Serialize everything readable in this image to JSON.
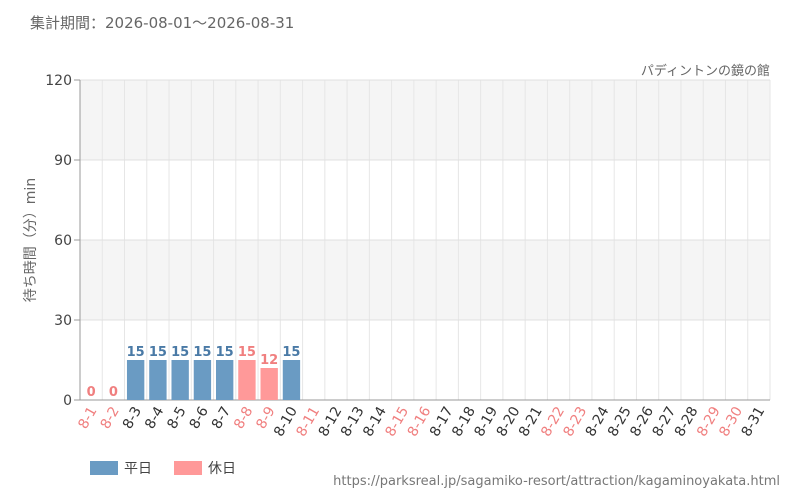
{
  "header": {
    "period_text": "集計期間：2026-08-01～2026-08-31",
    "attraction_name": "パディントンの鏡の館"
  },
  "chart_data": {
    "type": "bar",
    "ylabel": "待ち時間（分）min",
    "ylim": [
      0,
      120
    ],
    "yticks": [
      0,
      30,
      60,
      90,
      120
    ],
    "categories": [
      "8-1",
      "8-2",
      "8-3",
      "8-4",
      "8-5",
      "8-6",
      "8-7",
      "8-8",
      "8-9",
      "8-10",
      "8-11",
      "8-12",
      "8-13",
      "8-14",
      "8-15",
      "8-16",
      "8-17",
      "8-18",
      "8-19",
      "8-20",
      "8-21",
      "8-22",
      "8-23",
      "8-24",
      "8-25",
      "8-26",
      "8-27",
      "8-28",
      "8-29",
      "8-30",
      "8-31"
    ],
    "values": [
      0,
      0,
      15,
      15,
      15,
      15,
      15,
      15,
      12,
      15,
      null,
      null,
      null,
      null,
      null,
      null,
      null,
      null,
      null,
      null,
      null,
      null,
      null,
      null,
      null,
      null,
      null,
      null,
      null,
      null,
      null
    ],
    "day_type": [
      "holiday",
      "holiday",
      "weekday",
      "weekday",
      "weekday",
      "weekday",
      "weekday",
      "holiday",
      "holiday",
      "weekday",
      "holiday",
      "weekday",
      "weekday",
      "weekday",
      "holiday",
      "holiday",
      "weekday",
      "weekday",
      "weekday",
      "weekday",
      "weekday",
      "holiday",
      "holiday",
      "weekday",
      "weekday",
      "weekday",
      "weekday",
      "weekday",
      "holiday",
      "holiday",
      "weekday"
    ],
    "legend": [
      {
        "key": "weekday",
        "label": "平日",
        "color": "#6a9bc3"
      },
      {
        "key": "holiday",
        "label": "休日",
        "color": "#ff9999"
      }
    ],
    "label_colors": {
      "weekday": "#4a7aa6",
      "holiday": "#f07f7f"
    },
    "grid": true,
    "legend_position": "bottom-left"
  },
  "footer": {
    "source_url": "https://parksreal.jp/sagamiko-resort/attraction/kagaminoyakata.html"
  }
}
